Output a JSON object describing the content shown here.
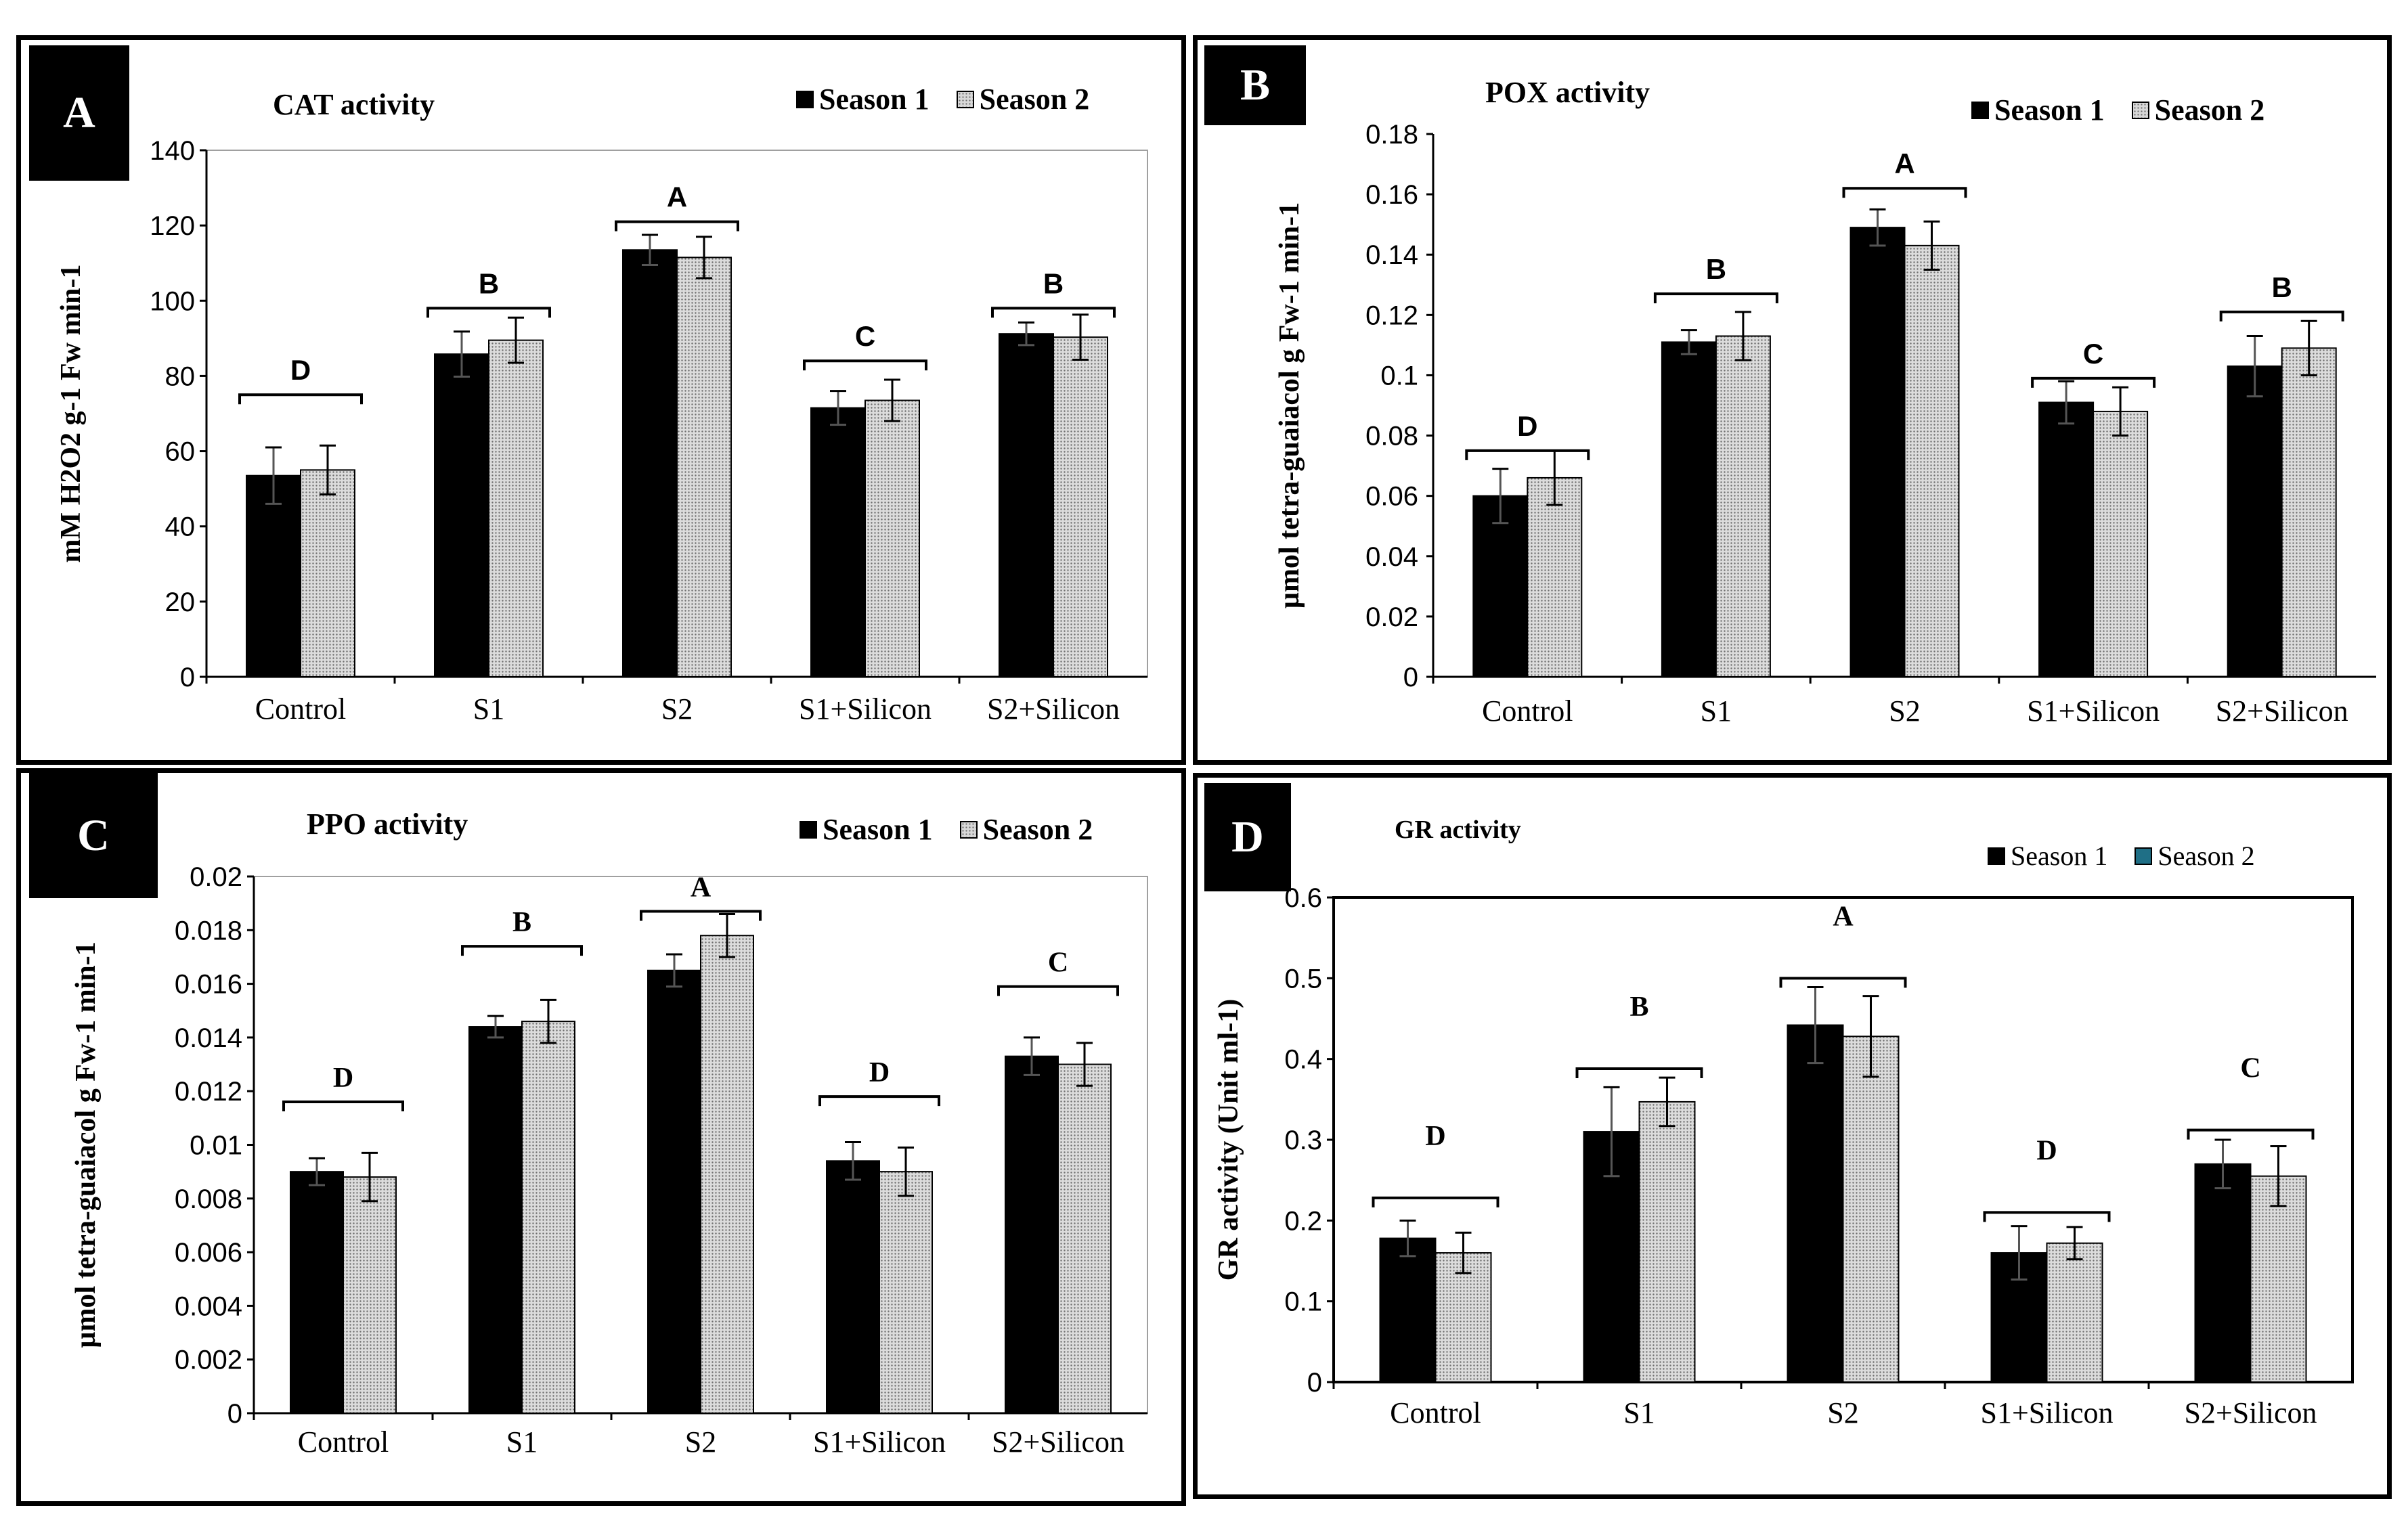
{
  "chart_data": [
    {
      "panel": "A",
      "type": "bar",
      "title": "CAT activity",
      "ylabel": "mM H2O2 g-1 Fw min-1",
      "ylim": [
        0,
        140
      ],
      "yticks": [
        "0",
        "20",
        "40",
        "60",
        "80",
        "100",
        "120",
        "140"
      ],
      "categories": [
        "Control",
        "S1",
        "S2",
        "S1+Silicon",
        "S2+Silicon"
      ],
      "series": [
        {
          "name": "Season 1",
          "values": [
            53.5,
            85.8,
            113.5,
            71.5,
            91.2
          ],
          "errors": [
            7.5,
            6.0,
            4.0,
            4.5,
            3.0
          ]
        },
        {
          "name": "Season 2",
          "values": [
            55.0,
            89.5,
            111.5,
            73.5,
            90.3
          ],
          "errors": [
            6.5,
            6.0,
            5.5,
            5.5,
            6.0
          ]
        }
      ],
      "groups": [
        "D",
        "B",
        "A",
        "C",
        "B"
      ],
      "groupLevels": [
        75,
        98,
        121,
        84,
        98
      ],
      "legend": [
        "Season 1",
        "Season 2"
      ]
    },
    {
      "panel": "B",
      "type": "bar",
      "title": "POX activity",
      "ylabel": "µmol tetra-guaiacol g Fw-1 min-1",
      "ylim": [
        0,
        0.18
      ],
      "yticks": [
        "0",
        "0.02",
        "0.04",
        "0.06",
        "0.08",
        "0.1",
        "0.12",
        "0.14",
        "0.16",
        "0.18"
      ],
      "categories": [
        "Control",
        "S1",
        "S2",
        "S1+Silicon",
        "S2+Silicon"
      ],
      "series": [
        {
          "name": "Season 1",
          "values": [
            0.06,
            0.111,
            0.149,
            0.091,
            0.103
          ],
          "errors": [
            0.009,
            0.004,
            0.006,
            0.007,
            0.01
          ]
        },
        {
          "name": "Season 2",
          "values": [
            0.066,
            0.113,
            0.143,
            0.088,
            0.109
          ],
          "errors": [
            0.009,
            0.008,
            0.008,
            0.008,
            0.009
          ]
        }
      ],
      "groups": [
        "D",
        "B",
        "A",
        "C",
        "B"
      ],
      "groupLevels": [
        0.075,
        0.127,
        0.162,
        0.099,
        0.121
      ],
      "legend": [
        "Season 1",
        "Season 2"
      ]
    },
    {
      "panel": "C",
      "type": "bar",
      "title": "PPO activity",
      "ylabel": "µmol tetra-guaiacol g Fw-1 min-1",
      "ylim": [
        0,
        0.02
      ],
      "yticks": [
        "0",
        "0.002",
        "0.004",
        "0.006",
        "0.008",
        "0.01",
        "0.012",
        "0.014",
        "0.016",
        "0.018",
        "0.02"
      ],
      "categories": [
        "Control",
        "S1",
        "S2",
        "S1+Silicon",
        "S2+Silicon"
      ],
      "series": [
        {
          "name": "Season 1",
          "values": [
            0.009,
            0.0144,
            0.0165,
            0.0094,
            0.0133
          ],
          "errors": [
            0.0005,
            0.0004,
            0.0006,
            0.0007,
            0.0007
          ]
        },
        {
          "name": "Season 2",
          "values": [
            0.0088,
            0.0146,
            0.0178,
            0.009,
            0.013
          ],
          "errors": [
            0.0009,
            0.0008,
            0.0008,
            0.0009,
            0.0008
          ]
        }
      ],
      "groups": [
        "D",
        "B",
        "A",
        "D",
        "C"
      ],
      "groupLevels": [
        0.0116,
        0.0174,
        0.0187,
        0.0118,
        0.0159
      ],
      "legend": [
        "Season 1",
        "Season 2"
      ]
    },
    {
      "panel": "D",
      "type": "bar",
      "title": "GR activity",
      "ylabel": "GR activity (Unit ml-1)",
      "ylim": [
        0,
        0.6
      ],
      "yticks": [
        "0",
        "0.1",
        "0.2",
        "0.3",
        "0.4",
        "0.5",
        "0.6"
      ],
      "categories": [
        "Control",
        "S1",
        "S2",
        "S1+Silicon",
        "S2+Silicon"
      ],
      "series": [
        {
          "name": "Season 1",
          "values": [
            0.178,
            0.31,
            0.442,
            0.16,
            0.27
          ],
          "errors": [
            0.022,
            0.055,
            0.047,
            0.033,
            0.03
          ]
        },
        {
          "name": "Season 2",
          "values": [
            0.16,
            0.347,
            0.428,
            0.172,
            0.255
          ],
          "errors": [
            0.025,
            0.03,
            0.05,
            0.02,
            0.037
          ]
        }
      ],
      "groups": [
        "D",
        "B",
        "A",
        "D",
        "C"
      ],
      "groupLevels": [
        0.228,
        0.388,
        0.5,
        0.21,
        0.312
      ],
      "legend": [
        "Season 1",
        "Season 2"
      ]
    }
  ]
}
